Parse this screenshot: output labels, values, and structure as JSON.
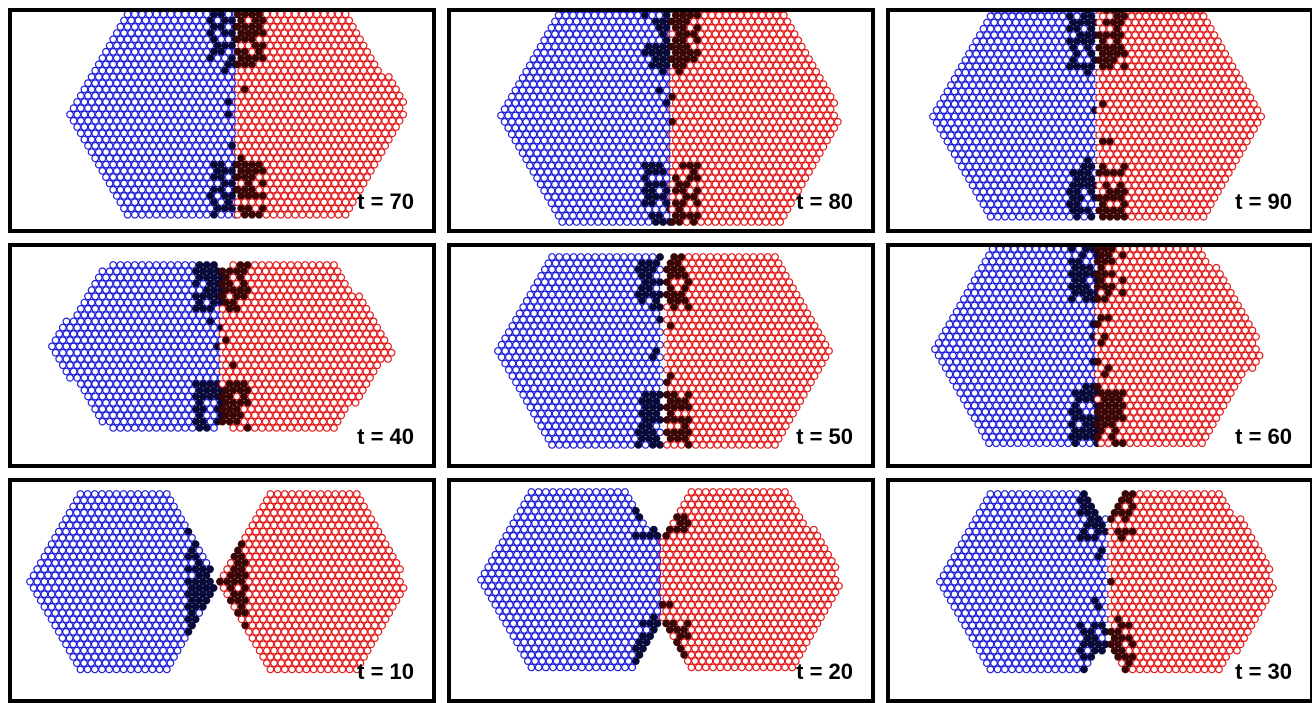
{
  "figure": {
    "panels": [
      {
        "id": "p70",
        "label": "t = 70",
        "time": 70,
        "row": 0,
        "col": 0
      },
      {
        "id": "p80",
        "label": "t = 80",
        "time": 80,
        "row": 0,
        "col": 1
      },
      {
        "id": "p90",
        "label": "t = 90",
        "time": 90,
        "row": 0,
        "col": 2
      },
      {
        "id": "p40",
        "label": "t = 40",
        "time": 40,
        "row": 1,
        "col": 0
      },
      {
        "id": "p50",
        "label": "t = 50",
        "time": 50,
        "row": 1,
        "col": 1
      },
      {
        "id": "p60",
        "label": "t = 60",
        "time": 60,
        "row": 1,
        "col": 2
      },
      {
        "id": "p10",
        "label": "t = 10",
        "time": 10,
        "row": 2,
        "col": 0
      },
      {
        "id": "p20",
        "label": "t = 20",
        "time": 20,
        "row": 2,
        "col": 1
      },
      {
        "id": "p30",
        "label": "t = 30",
        "time": 30,
        "row": 2,
        "col": 2
      }
    ],
    "colors": {
      "left_cluster": "#1f1fd8",
      "right_cluster": "#e21a1a",
      "interface_left": "#0a0a3a",
      "interface_right": "#3a0606",
      "border": "#000000"
    }
  }
}
